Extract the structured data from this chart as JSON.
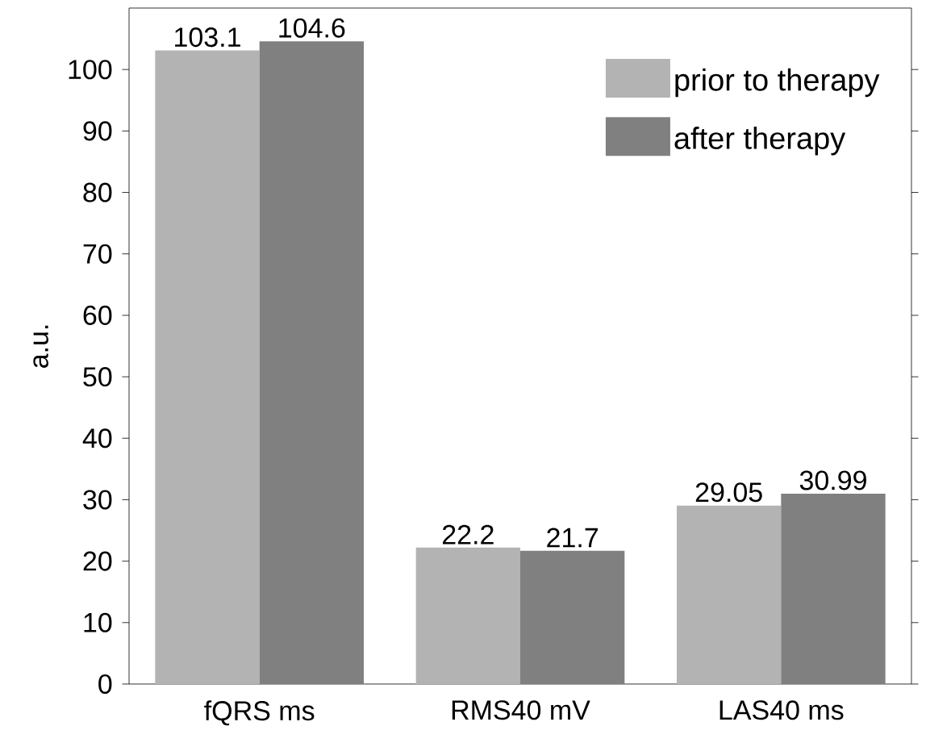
{
  "chart_data": {
    "type": "bar",
    "ylabel": "a.u.",
    "categories": [
      "fQRS ms",
      "RMS40 mV",
      "LAS40 ms"
    ],
    "series": [
      {
        "name": "prior to therapy",
        "color": "#b3b3b3",
        "values": [
          103.1,
          22.2,
          29.05
        ]
      },
      {
        "name": "after therapy",
        "color": "#808080",
        "values": [
          104.6,
          21.7,
          30.99
        ]
      }
    ],
    "ylim": [
      0,
      110
    ],
    "yticks": [
      0,
      10,
      20,
      30,
      40,
      50,
      60,
      70,
      80,
      90,
      100
    ],
    "data_labels": true,
    "legend": "top right",
    "grid": false
  }
}
